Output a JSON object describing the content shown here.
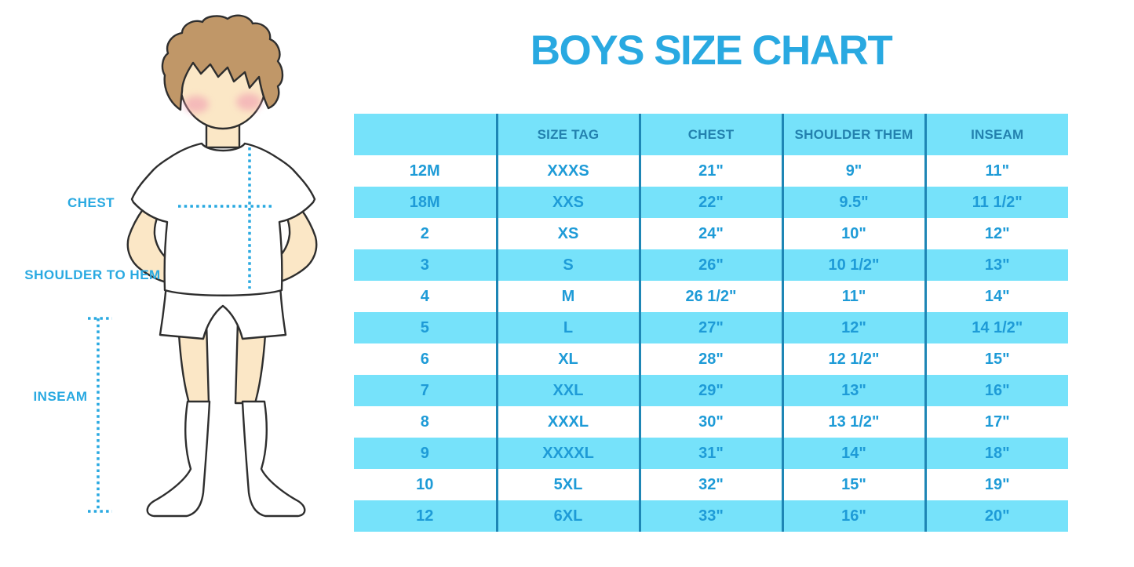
{
  "title": "BOYS SIZE CHART",
  "figure_labels": {
    "chest": "CHEST",
    "shoulder_to_hem": "SHOULDER TO HEM",
    "inseam": "INSEAM"
  },
  "colors": {
    "accent_blue": "#29A9E1",
    "table_text_blue": "#1E9BD7",
    "header_text_blue": "#2381AE",
    "stripe_cyan": "#76E2FA",
    "divider_blue": "#1E86B5",
    "skin": "#FBE7C6",
    "hair_brown": "#C09768",
    "blush_pink": "#F09CB0"
  },
  "table": {
    "headers": [
      "",
      "SIZE TAG",
      "CHEST",
      "SHOULDER THEM",
      "INSEAM"
    ],
    "col_keys": [
      "size",
      "tag",
      "chest",
      "shoulder",
      "inseam"
    ],
    "rows": [
      {
        "size": "12M",
        "tag": "XXXS",
        "chest": "21\"",
        "shoulder": "9\"",
        "inseam": "11\""
      },
      {
        "size": "18M",
        "tag": "XXS",
        "chest": "22\"",
        "shoulder": "9.5\"",
        "inseam": "11 1/2\""
      },
      {
        "size": "2",
        "tag": "XS",
        "chest": "24\"",
        "shoulder": "10\"",
        "inseam": "12\""
      },
      {
        "size": "3",
        "tag": "S",
        "chest": "26\"",
        "shoulder": "10 1/2\"",
        "inseam": "13\""
      },
      {
        "size": "4",
        "tag": "M",
        "chest": "26 1/2\"",
        "shoulder": "11\"",
        "inseam": "14\""
      },
      {
        "size": "5",
        "tag": "L",
        "chest": "27\"",
        "shoulder": "12\"",
        "inseam": "14 1/2\""
      },
      {
        "size": "6",
        "tag": "XL",
        "chest": "28\"",
        "shoulder": "12 1/2\"",
        "inseam": "15\""
      },
      {
        "size": "7",
        "tag": "XXL",
        "chest": "29\"",
        "shoulder": "13\"",
        "inseam": "16\""
      },
      {
        "size": "8",
        "tag": "XXXL",
        "chest": "30\"",
        "shoulder": "13 1/2\"",
        "inseam": "17\""
      },
      {
        "size": "9",
        "tag": "XXXXL",
        "chest": "31\"",
        "shoulder": "14\"",
        "inseam": "18\""
      },
      {
        "size": "10",
        "tag": "5XL",
        "chest": "32\"",
        "shoulder": "15\"",
        "inseam": "19\""
      },
      {
        "size": "12",
        "tag": "6XL",
        "chest": "33\"",
        "shoulder": "16\"",
        "inseam": "20\""
      }
    ]
  },
  "chart_data": {
    "type": "table",
    "title": "BOYS SIZE CHART",
    "columns": [
      "",
      "SIZE TAG",
      "CHEST",
      "SHOULDER THEM",
      "INSEAM"
    ],
    "rows": [
      [
        "12M",
        "XXXS",
        "21\"",
        "9\"",
        "11\""
      ],
      [
        "18M",
        "XXS",
        "22\"",
        "9.5\"",
        "11 1/2\""
      ],
      [
        "2",
        "XS",
        "24\"",
        "10\"",
        "12\""
      ],
      [
        "3",
        "S",
        "26\"",
        "10 1/2\"",
        "13\""
      ],
      [
        "4",
        "M",
        "26 1/2\"",
        "11\"",
        "14\""
      ],
      [
        "5",
        "L",
        "27\"",
        "12\"",
        "14 1/2\""
      ],
      [
        "6",
        "XL",
        "28\"",
        "12 1/2\"",
        "15\""
      ],
      [
        "7",
        "XXL",
        "29\"",
        "13\"",
        "16\""
      ],
      [
        "8",
        "XXXL",
        "30\"",
        "13 1/2\"",
        "17\""
      ],
      [
        "9",
        "XXXXL",
        "31\"",
        "14\"",
        "18\""
      ],
      [
        "10",
        "5XL",
        "32\"",
        "15\"",
        "19\""
      ],
      [
        "12",
        "6XL",
        "33\"",
        "16\"",
        "20\""
      ]
    ],
    "measurement_annotations": [
      "CHEST",
      "SHOULDER TO HEM",
      "INSEAM"
    ],
    "legend_position": "none",
    "grid": "vertical-dividers-only"
  }
}
